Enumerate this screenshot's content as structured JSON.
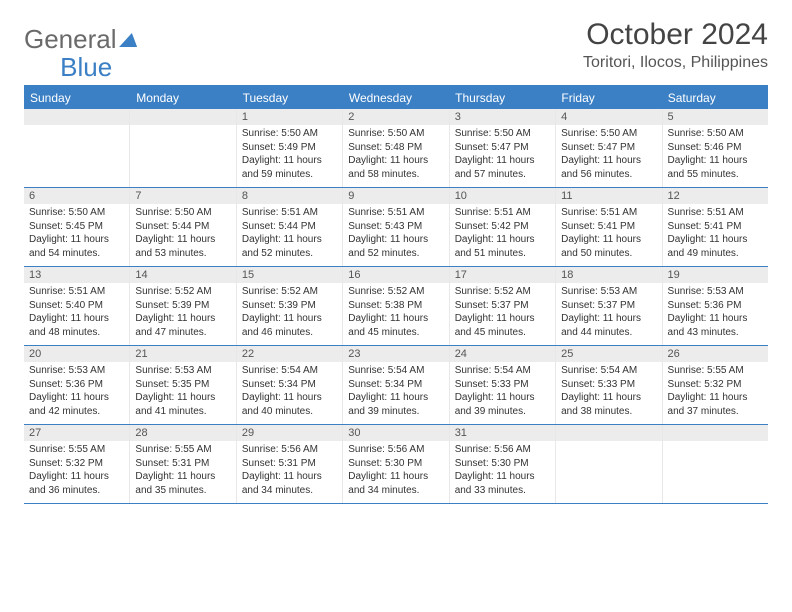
{
  "brand": {
    "part1": "General",
    "part2": "Blue"
  },
  "month_title": "October 2024",
  "location": "Toritori, Ilocos, Philippines",
  "colors": {
    "accent": "#3b7fc4",
    "daynum_bg": "#ececec",
    "text": "#333333",
    "background": "#ffffff"
  },
  "dow": [
    "Sunday",
    "Monday",
    "Tuesday",
    "Wednesday",
    "Thursday",
    "Friday",
    "Saturday"
  ],
  "weeks": [
    [
      null,
      null,
      {
        "n": "1",
        "sr": "5:50 AM",
        "ss": "5:49 PM",
        "dl": "11 hours and 59 minutes."
      },
      {
        "n": "2",
        "sr": "5:50 AM",
        "ss": "5:48 PM",
        "dl": "11 hours and 58 minutes."
      },
      {
        "n": "3",
        "sr": "5:50 AM",
        "ss": "5:47 PM",
        "dl": "11 hours and 57 minutes."
      },
      {
        "n": "4",
        "sr": "5:50 AM",
        "ss": "5:47 PM",
        "dl": "11 hours and 56 minutes."
      },
      {
        "n": "5",
        "sr": "5:50 AM",
        "ss": "5:46 PM",
        "dl": "11 hours and 55 minutes."
      }
    ],
    [
      {
        "n": "6",
        "sr": "5:50 AM",
        "ss": "5:45 PM",
        "dl": "11 hours and 54 minutes."
      },
      {
        "n": "7",
        "sr": "5:50 AM",
        "ss": "5:44 PM",
        "dl": "11 hours and 53 minutes."
      },
      {
        "n": "8",
        "sr": "5:51 AM",
        "ss": "5:44 PM",
        "dl": "11 hours and 52 minutes."
      },
      {
        "n": "9",
        "sr": "5:51 AM",
        "ss": "5:43 PM",
        "dl": "11 hours and 52 minutes."
      },
      {
        "n": "10",
        "sr": "5:51 AM",
        "ss": "5:42 PM",
        "dl": "11 hours and 51 minutes."
      },
      {
        "n": "11",
        "sr": "5:51 AM",
        "ss": "5:41 PM",
        "dl": "11 hours and 50 minutes."
      },
      {
        "n": "12",
        "sr": "5:51 AM",
        "ss": "5:41 PM",
        "dl": "11 hours and 49 minutes."
      }
    ],
    [
      {
        "n": "13",
        "sr": "5:51 AM",
        "ss": "5:40 PM",
        "dl": "11 hours and 48 minutes."
      },
      {
        "n": "14",
        "sr": "5:52 AM",
        "ss": "5:39 PM",
        "dl": "11 hours and 47 minutes."
      },
      {
        "n": "15",
        "sr": "5:52 AM",
        "ss": "5:39 PM",
        "dl": "11 hours and 46 minutes."
      },
      {
        "n": "16",
        "sr": "5:52 AM",
        "ss": "5:38 PM",
        "dl": "11 hours and 45 minutes."
      },
      {
        "n": "17",
        "sr": "5:52 AM",
        "ss": "5:37 PM",
        "dl": "11 hours and 45 minutes."
      },
      {
        "n": "18",
        "sr": "5:53 AM",
        "ss": "5:37 PM",
        "dl": "11 hours and 44 minutes."
      },
      {
        "n": "19",
        "sr": "5:53 AM",
        "ss": "5:36 PM",
        "dl": "11 hours and 43 minutes."
      }
    ],
    [
      {
        "n": "20",
        "sr": "5:53 AM",
        "ss": "5:36 PM",
        "dl": "11 hours and 42 minutes."
      },
      {
        "n": "21",
        "sr": "5:53 AM",
        "ss": "5:35 PM",
        "dl": "11 hours and 41 minutes."
      },
      {
        "n": "22",
        "sr": "5:54 AM",
        "ss": "5:34 PM",
        "dl": "11 hours and 40 minutes."
      },
      {
        "n": "23",
        "sr": "5:54 AM",
        "ss": "5:34 PM",
        "dl": "11 hours and 39 minutes."
      },
      {
        "n": "24",
        "sr": "5:54 AM",
        "ss": "5:33 PM",
        "dl": "11 hours and 39 minutes."
      },
      {
        "n": "25",
        "sr": "5:54 AM",
        "ss": "5:33 PM",
        "dl": "11 hours and 38 minutes."
      },
      {
        "n": "26",
        "sr": "5:55 AM",
        "ss": "5:32 PM",
        "dl": "11 hours and 37 minutes."
      }
    ],
    [
      {
        "n": "27",
        "sr": "5:55 AM",
        "ss": "5:32 PM",
        "dl": "11 hours and 36 minutes."
      },
      {
        "n": "28",
        "sr": "5:55 AM",
        "ss": "5:31 PM",
        "dl": "11 hours and 35 minutes."
      },
      {
        "n": "29",
        "sr": "5:56 AM",
        "ss": "5:31 PM",
        "dl": "11 hours and 34 minutes."
      },
      {
        "n": "30",
        "sr": "5:56 AM",
        "ss": "5:30 PM",
        "dl": "11 hours and 34 minutes."
      },
      {
        "n": "31",
        "sr": "5:56 AM",
        "ss": "5:30 PM",
        "dl": "11 hours and 33 minutes."
      },
      null,
      null
    ]
  ],
  "labels": {
    "sunrise": "Sunrise:",
    "sunset": "Sunset:",
    "daylight": "Daylight:"
  }
}
